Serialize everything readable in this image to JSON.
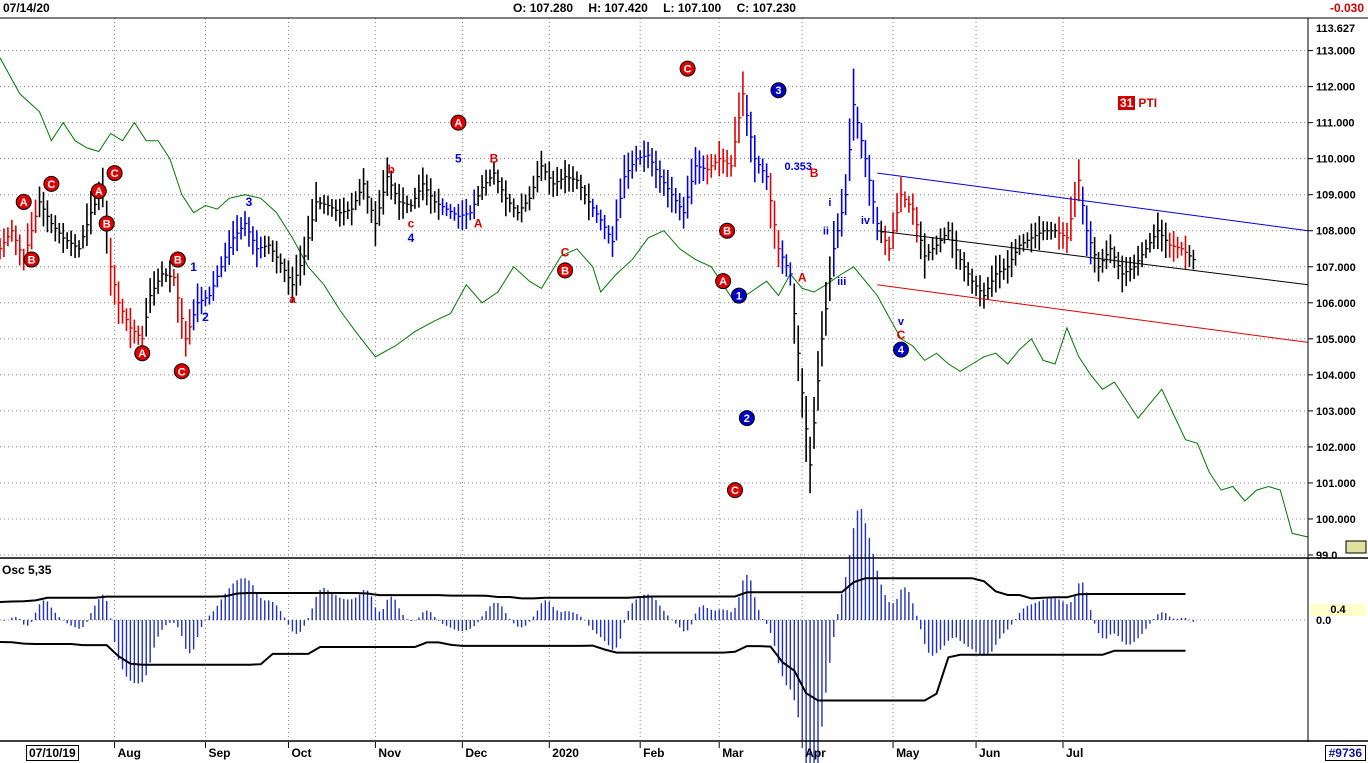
{
  "header": {
    "date": "07/14/20",
    "open_label": "O:",
    "open": "107.280",
    "high_label": "H:",
    "high": "107.420",
    "low_label": "L:",
    "low": "107.100",
    "close_label": "C:",
    "close": "107.230",
    "change": "-0.030"
  },
  "footer": {
    "start_date": "07/10/19",
    "bookmark": "#9736"
  },
  "oscillator": {
    "label": "Osc 5,35",
    "value_label": "0.4",
    "zero_label": "0.0"
  },
  "pti": {
    "count": "31",
    "label": "PTI"
  },
  "colors": {
    "up": "#000000",
    "down_red": "#e00000",
    "blue": "#0000e0",
    "green": "#007a00",
    "osc": "#2030c0",
    "grid": "#888888"
  },
  "chart_data": {
    "type": "bar",
    "title": "",
    "price_axis": {
      "ylim": [
        99.0,
        113.627
      ],
      "ticks": [
        "113.000",
        "112.000",
        "111.000",
        "110.000",
        "109.000",
        "108.000",
        "107.000",
        "106.000",
        "105.000",
        "104.000",
        "103.000",
        "102.000",
        "101.000",
        "100.000",
        "99.0"
      ],
      "top_label": "113.627"
    },
    "months": [
      "Aug",
      "Sep",
      "Oct",
      "Nov",
      "Dec",
      "2020",
      "Feb",
      "Mar",
      "Apr",
      "May",
      "Jun",
      "Jul"
    ],
    "price_path": [
      [
        0,
        107.5
      ],
      [
        3,
        108.0
      ],
      [
        6,
        107.2
      ],
      [
        10,
        108.8
      ],
      [
        13,
        108.2
      ],
      [
        16,
        107.8
      ],
      [
        20,
        107.5
      ],
      [
        23,
        108.5
      ],
      [
        26,
        109.2
      ],
      [
        28,
        107.0
      ],
      [
        30,
        106.0
      ],
      [
        33,
        105.3
      ],
      [
        36,
        105.0
      ],
      [
        38,
        106.2
      ],
      [
        41,
        106.8
      ],
      [
        44,
        106.7
      ],
      [
        47,
        105.0
      ],
      [
        50,
        106.0
      ],
      [
        53,
        106.2
      ],
      [
        56,
        107.0
      ],
      [
        59,
        107.8
      ],
      [
        62,
        108.2
      ],
      [
        65,
        107.5
      ],
      [
        68,
        107.6
      ],
      [
        71,
        107.1
      ],
      [
        74,
        106.5
      ],
      [
        77,
        107.3
      ],
      [
        80,
        108.8
      ],
      [
        83,
        108.7
      ],
      [
        86,
        108.5
      ],
      [
        89,
        108.6
      ],
      [
        92,
        109.3
      ],
      [
        95,
        108.2
      ],
      [
        98,
        109.5
      ],
      [
        101,
        108.8
      ],
      [
        104,
        108.7
      ],
      [
        107,
        109.3
      ],
      [
        110,
        108.8
      ],
      [
        113,
        108.6
      ],
      [
        116,
        108.4
      ],
      [
        119,
        108.5
      ],
      [
        122,
        109.2
      ],
      [
        125,
        109.6
      ],
      [
        128,
        108.9
      ],
      [
        131,
        108.5
      ],
      [
        134,
        108.9
      ],
      [
        137,
        109.8
      ],
      [
        140,
        109.3
      ],
      [
        143,
        109.5
      ],
      [
        146,
        109.4
      ],
      [
        149,
        108.8
      ],
      [
        152,
        108.3
      ],
      [
        155,
        107.7
      ],
      [
        158,
        109.5
      ],
      [
        161,
        110.0
      ],
      [
        164,
        110.1
      ],
      [
        167,
        109.5
      ],
      [
        170,
        109.0
      ],
      [
        173,
        108.5
      ],
      [
        176,
        109.8
      ],
      [
        179,
        109.7
      ],
      [
        182,
        110.0
      ],
      [
        185,
        109.8
      ],
      [
        188,
        111.8
      ],
      [
        191,
        110.0
      ],
      [
        194,
        109.5
      ],
      [
        197,
        107.5
      ],
      [
        200,
        106.8
      ],
      [
        203,
        103.5
      ],
      [
        205,
        101.5
      ],
      [
        208,
        105.0
      ],
      [
        211,
        107.5
      ],
      [
        214,
        109.0
      ],
      [
        216,
        111.5
      ],
      [
        219,
        110.0
      ],
      [
        222,
        108.2
      ],
      [
        225,
        107.5
      ],
      [
        228,
        109.0
      ],
      [
        231,
        108.6
      ],
      [
        234,
        107.3
      ],
      [
        237,
        107.6
      ],
      [
        240,
        108.0
      ],
      [
        243,
        107.2
      ],
      [
        246,
        106.6
      ],
      [
        249,
        106.2
      ],
      [
        252,
        106.8
      ],
      [
        255,
        107.0
      ],
      [
        258,
        107.6
      ],
      [
        261,
        107.8
      ],
      [
        264,
        108.0
      ],
      [
        267,
        108.0
      ],
      [
        270,
        107.8
      ],
      [
        273,
        109.4
      ],
      [
        275,
        108.0
      ],
      [
        278,
        107.0
      ],
      [
        281,
        107.5
      ],
      [
        284,
        106.8
      ],
      [
        287,
        107.0
      ],
      [
        290,
        107.5
      ],
      [
        293,
        108.0
      ],
      [
        296,
        107.6
      ],
      [
        299,
        107.5
      ],
      [
        302,
        107.2
      ]
    ],
    "green_line": [
      [
        0,
        112.8
      ],
      [
        5,
        111.8
      ],
      [
        10,
        111.3
      ],
      [
        13,
        110.5
      ],
      [
        16,
        111.0
      ],
      [
        19,
        110.5
      ],
      [
        22,
        110.3
      ],
      [
        25,
        110.2
      ],
      [
        28,
        110.7
      ],
      [
        31,
        110.5
      ],
      [
        34,
        111.0
      ],
      [
        37,
        110.5
      ],
      [
        40,
        110.5
      ],
      [
        43,
        110.0
      ],
      [
        46,
        109.0
      ],
      [
        49,
        108.5
      ],
      [
        52,
        108.7
      ],
      [
        55,
        108.6
      ],
      [
        58,
        108.9
      ],
      [
        62,
        109.0
      ],
      [
        66,
        108.9
      ],
      [
        70,
        108.5
      ],
      [
        74,
        107.8
      ],
      [
        78,
        107.0
      ],
      [
        82,
        106.5
      ],
      [
        86,
        105.8
      ],
      [
        90,
        105.2
      ],
      [
        95,
        104.5
      ],
      [
        100,
        104.8
      ],
      [
        105,
        105.2
      ],
      [
        110,
        105.5
      ],
      [
        114,
        105.7
      ],
      [
        118,
        106.5
      ],
      [
        122,
        106.0
      ],
      [
        126,
        106.3
      ],
      [
        130,
        107.0
      ],
      [
        134,
        106.6
      ],
      [
        137,
        106.4
      ],
      [
        142,
        107.3
      ],
      [
        146,
        107.5
      ],
      [
        150,
        107.0
      ],
      [
        152,
        106.3
      ],
      [
        156,
        106.8
      ],
      [
        160,
        107.2
      ],
      [
        164,
        107.8
      ],
      [
        168,
        108.0
      ],
      [
        172,
        107.5
      ],
      [
        176,
        107.2
      ],
      [
        180,
        107.0
      ],
      [
        183,
        106.5
      ],
      [
        186,
        106.0
      ],
      [
        190,
        106.3
      ],
      [
        194,
        106.6
      ],
      [
        197,
        106.2
      ],
      [
        200,
        106.8
      ],
      [
        203,
        106.4
      ],
      [
        206,
        106.3
      ],
      [
        209,
        106.5
      ],
      [
        213,
        106.8
      ],
      [
        216,
        107.0
      ],
      [
        219,
        106.6
      ],
      [
        222,
        106.2
      ],
      [
        225,
        105.6
      ],
      [
        228,
        105.0
      ],
      [
        231,
        104.8
      ],
      [
        234,
        104.4
      ],
      [
        237,
        104.6
      ],
      [
        240,
        104.3
      ],
      [
        243,
        104.1
      ],
      [
        246,
        104.3
      ],
      [
        249,
        104.5
      ],
      [
        252,
        104.6
      ],
      [
        255,
        104.3
      ],
      [
        258,
        104.7
      ],
      [
        261,
        105.0
      ],
      [
        264,
        104.4
      ],
      [
        267,
        104.3
      ],
      [
        270,
        105.3
      ],
      [
        273,
        104.5
      ],
      [
        276,
        104.0
      ],
      [
        279,
        103.6
      ],
      [
        282,
        103.8
      ],
      [
        285,
        103.3
      ],
      [
        288,
        102.8
      ],
      [
        291,
        103.2
      ],
      [
        294,
        103.6
      ],
      [
        297,
        102.9
      ],
      [
        300,
        102.2
      ],
      [
        303,
        102.1
      ],
      [
        306,
        101.3
      ],
      [
        309,
        100.8
      ],
      [
        312,
        100.9
      ],
      [
        315,
        100.5
      ],
      [
        318,
        100.8
      ],
      [
        321,
        100.9
      ],
      [
        324,
        100.8
      ],
      [
        327,
        99.6
      ],
      [
        331,
        99.5
      ]
    ],
    "channel_lines": [
      {
        "color": "blue",
        "from": [
          222,
          109.6
        ],
        "to": [
          331,
          108.0
        ]
      },
      {
        "color": "black",
        "from": [
          222,
          108.0
        ],
        "to": [
          331,
          106.5
        ]
      },
      {
        "color": "red",
        "from": [
          222,
          106.5
        ],
        "to": [
          331,
          104.9
        ]
      }
    ],
    "wave_labels": [
      {
        "text": "A",
        "x": 6,
        "y": 108.8,
        "style": "red-circle"
      },
      {
        "text": "B",
        "x": 8,
        "y": 107.2,
        "style": "red-circle"
      },
      {
        "text": "C",
        "x": 13,
        "y": 109.3,
        "style": "red-circle"
      },
      {
        "text": "A",
        "x": 25,
        "y": 109.1,
        "style": "red-circle"
      },
      {
        "text": "B",
        "x": 27,
        "y": 108.2,
        "style": "red-circle"
      },
      {
        "text": "C",
        "x": 29,
        "y": 109.6,
        "style": "red-circle"
      },
      {
        "text": "A",
        "x": 36,
        "y": 104.6,
        "style": "red-circle"
      },
      {
        "text": "B",
        "x": 45,
        "y": 107.2,
        "style": "red-circle"
      },
      {
        "text": "C",
        "x": 46,
        "y": 104.1,
        "style": "red-circle"
      },
      {
        "text": "1",
        "x": 49,
        "y": 107.0,
        "style": "blue-text"
      },
      {
        "text": "2",
        "x": 52,
        "y": 105.6,
        "style": "blue-text"
      },
      {
        "text": "3",
        "x": 63,
        "y": 108.8,
        "style": "blue-text"
      },
      {
        "text": "a",
        "x": 74,
        "y": 106.1,
        "style": "red-text"
      },
      {
        "text": "b",
        "x": 99,
        "y": 109.7,
        "style": "red-text"
      },
      {
        "text": "c",
        "x": 104,
        "y": 108.2,
        "style": "red-text"
      },
      {
        "text": "4",
        "x": 104,
        "y": 107.8,
        "style": "blue-text"
      },
      {
        "text": "A",
        "x": 116,
        "y": 111.0,
        "style": "red-circle"
      },
      {
        "text": "5",
        "x": 116,
        "y": 110.0,
        "style": "blue-text"
      },
      {
        "text": "B",
        "x": 125,
        "y": 110.0,
        "style": "red-text"
      },
      {
        "text": "A",
        "x": 121,
        "y": 108.2,
        "style": "red-text"
      },
      {
        "text": "C",
        "x": 143,
        "y": 107.4,
        "style": "red-text"
      },
      {
        "text": "B",
        "x": 143,
        "y": 106.9,
        "style": "red-circle"
      },
      {
        "text": "C",
        "x": 174,
        "y": 112.5,
        "style": "red-circle"
      },
      {
        "text": "B",
        "x": 184,
        "y": 108.0,
        "style": "red-circle"
      },
      {
        "text": "A",
        "x": 183,
        "y": 106.6,
        "style": "red-circle"
      },
      {
        "text": "1",
        "x": 187,
        "y": 106.2,
        "style": "blue-circle"
      },
      {
        "text": "2",
        "x": 189,
        "y": 102.8,
        "style": "blue-circle"
      },
      {
        "text": "C",
        "x": 186,
        "y": 100.8,
        "style": "red-circle"
      },
      {
        "text": "3",
        "x": 197,
        "y": 111.9,
        "style": "blue-circle"
      },
      {
        "text": "0.353",
        "x": 202,
        "y": 109.8,
        "style": "blue-small"
      },
      {
        "text": "B",
        "x": 206,
        "y": 109.6,
        "style": "red-text"
      },
      {
        "text": "i",
        "x": 210,
        "y": 108.8,
        "style": "blue-small"
      },
      {
        "text": "ii",
        "x": 209,
        "y": 108.0,
        "style": "blue-small"
      },
      {
        "text": "A",
        "x": 203,
        "y": 106.7,
        "style": "red-text"
      },
      {
        "text": "iii",
        "x": 213,
        "y": 106.6,
        "style": "blue-small"
      },
      {
        "text": "iv",
        "x": 219,
        "y": 108.3,
        "style": "blue-small"
      },
      {
        "text": "v",
        "x": 228,
        "y": 105.5,
        "style": "blue-small"
      },
      {
        "text": "C",
        "x": 228,
        "y": 105.1,
        "style": "red-text"
      },
      {
        "text": "4",
        "x": 228,
        "y": 104.7,
        "style": "blue-circle"
      }
    ],
    "oscillator": {
      "zero": 0,
      "ylim": [
        -3.2,
        1.6
      ],
      "histogram_hint": "blue bars around zero with peaks in Aug, Sep, Feb, Mar, Jun and deep trough in Mar"
    }
  }
}
